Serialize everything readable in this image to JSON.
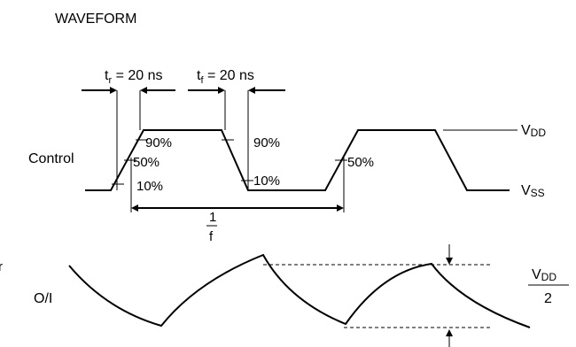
{
  "title": "WAVEFORM",
  "rise_time": {
    "symbol": "t",
    "sub": "r",
    "rest": " = 20 ns"
  },
  "fall_time": {
    "symbol": "t",
    "sub": "f",
    "rest": " = 20 ns"
  },
  "control_label": "Control",
  "oi_label": "O/I",
  "levels": {
    "p90_left": "90%",
    "p50_left": "50%",
    "p10_left": "10%",
    "p90_right": "90%",
    "p10_right": "10%",
    "p50_mid": "50%"
  },
  "vdd": {
    "main": "V",
    "sub": "DD"
  },
  "vss": {
    "main": "V",
    "sub": "SS"
  },
  "period": {
    "numerator": "1",
    "denominator": "f"
  },
  "half_vdd": {
    "numerator_main": "V",
    "numerator_sub": "DD",
    "denominator": "2"
  },
  "edge_cut_label": "r"
}
